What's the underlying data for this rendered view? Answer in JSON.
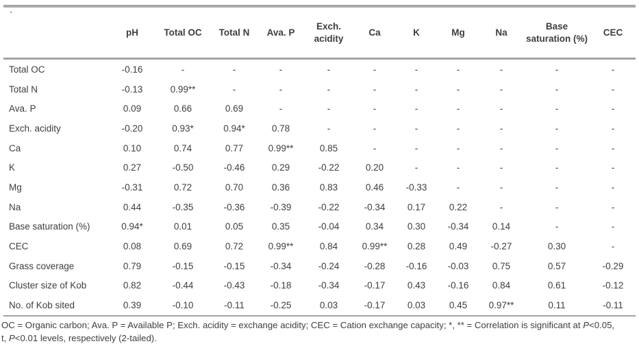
{
  "table": {
    "corner": "`",
    "columns": [
      "pH",
      "Total OC",
      "Total N",
      "Ava. P",
      "Exch. acidity",
      "Ca",
      "K",
      "Mg",
      "Na",
      "Base saturation (%)",
      "CEC"
    ],
    "rows": [
      {
        "label": "Total OC",
        "values": [
          "-0.16",
          "-",
          "-",
          "-",
          "-",
          "-",
          "-",
          "-",
          "-",
          "-",
          "-"
        ]
      },
      {
        "label": "Total N",
        "values": [
          "-0.13",
          "0.99**",
          "-",
          "-",
          "-",
          "-",
          "-",
          "-",
          "-",
          "-",
          "-"
        ]
      },
      {
        "label": "Ava. P",
        "values": [
          "0.09",
          "0.66",
          "0.69",
          "-",
          "-",
          "-",
          "-",
          "-",
          "-",
          "-",
          "-"
        ]
      },
      {
        "label": "Exch. acidity",
        "values": [
          "-0.20",
          "0.93*",
          "0.94*",
          "0.78",
          "-",
          "-",
          "-",
          "-",
          "-",
          "-",
          "-"
        ]
      },
      {
        "label": "Ca",
        "values": [
          "0.10",
          "0.74",
          "0.77",
          "0.99**",
          "0.85",
          "-",
          "-",
          "-",
          "-",
          "-",
          "-"
        ]
      },
      {
        "label": "K",
        "values": [
          "0.27",
          "-0.50",
          "-0.46",
          "0.29",
          "-0.22",
          "0.20",
          "-",
          "-",
          "-",
          "-",
          "-"
        ]
      },
      {
        "label": "Mg",
        "values": [
          "-0.31",
          "0.72",
          "0.70",
          "0.36",
          "0.83",
          "0.46",
          "-0.33",
          "-",
          "-",
          "-",
          "-"
        ]
      },
      {
        "label": "Na",
        "values": [
          "0.44",
          "-0.35",
          "-0.36",
          "-0.39",
          "-0.22",
          "-0.34",
          "0.17",
          "0.22",
          "-",
          "-",
          "-"
        ]
      },
      {
        "label": "Base saturation (%)",
        "values": [
          "0.94*",
          "0.01",
          "0.05",
          "0.35",
          "-0.04",
          "0.34",
          "0.30",
          "-0.34",
          "0.14",
          "-",
          "-"
        ]
      },
      {
        "label": "CEC",
        "values": [
          "0.08",
          "0.69",
          "0.72",
          "0.99**",
          "0.84",
          "0.99**",
          "0.28",
          "0.49",
          "-0.27",
          "0.30",
          "-"
        ]
      },
      {
        "label": "Grass coverage",
        "values": [
          "0.79",
          "-0.15",
          "-0.15",
          "-0.34",
          "-0.24",
          "-0.28",
          "-0.16",
          "-0.03",
          "0.75",
          "0.57",
          "-0.29"
        ]
      },
      {
        "label": "Cluster size of Kob",
        "values": [
          "0.82",
          "-0.44",
          "-0.43",
          "-0.18",
          "-0.34",
          "-0.17",
          "0.43",
          "-0.16",
          "0.84",
          "0.61",
          "-0.12"
        ]
      },
      {
        "label": "No. of Kob sited",
        "values": [
          "0.39",
          "-0.10",
          "-0.11",
          "-0.25",
          "0.03",
          "-0.17",
          "0.03",
          "0.45",
          "0.97**",
          "0.11",
          "-0.11"
        ]
      }
    ]
  },
  "footnote": {
    "lines": [
      [
        {
          "t": "OC = Organic carbon; Ava. P = Available P; Exch. acidity = exchange acidity; CEC = Cation exchange capacity; *, ** = Correlation is significant at ",
          "i": false
        },
        {
          "t": "P",
          "i": true
        },
        {
          "t": "<0.05,",
          "i": false
        }
      ],
      [
        {
          "t": "t, ",
          "i": false
        },
        {
          "t": "P",
          "i": true
        },
        {
          "t": "<0.01 levels, respectively (2-tailed).",
          "i": false
        }
      ]
    ]
  },
  "colors": {
    "text": "#3e3e3e",
    "rule_heavy": "#a3a3a3",
    "rule_light": "#b5b5b5"
  }
}
